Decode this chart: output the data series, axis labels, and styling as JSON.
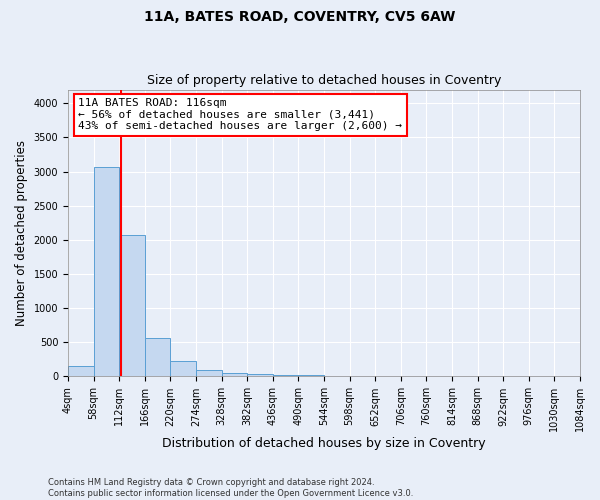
{
  "title": "11A, BATES ROAD, COVENTRY, CV5 6AW",
  "subtitle": "Size of property relative to detached houses in Coventry",
  "xlabel": "Distribution of detached houses by size in Coventry",
  "ylabel": "Number of detached properties",
  "bin_edges": [
    4,
    58,
    112,
    166,
    220,
    274,
    328,
    382,
    436,
    490,
    544,
    598,
    652,
    706,
    760,
    814,
    868,
    922,
    976,
    1030,
    1084
  ],
  "bin_heights": [
    150,
    3060,
    2070,
    560,
    220,
    90,
    55,
    40,
    25,
    18,
    12,
    10,
    8,
    6,
    5,
    4,
    3,
    2,
    2,
    2
  ],
  "bar_color": "#c5d8f0",
  "bar_edgecolor": "#5a9fd4",
  "vline_x": 116,
  "vline_color": "red",
  "annotation_text": "11A BATES ROAD: 116sqm\n← 56% of detached houses are smaller (3,441)\n43% of semi-detached houses are larger (2,600) →",
  "annotation_box_color": "white",
  "annotation_box_edgecolor": "red",
  "ylim": [
    0,
    4200
  ],
  "yticks": [
    0,
    500,
    1000,
    1500,
    2000,
    2500,
    3000,
    3500,
    4000
  ],
  "background_color": "#e8eef8",
  "plot_bg_color": "#e8eef8",
  "footer_line1": "Contains HM Land Registry data © Crown copyright and database right 2024.",
  "footer_line2": "Contains public sector information licensed under the Open Government Licence v3.0.",
  "title_fontsize": 10,
  "subtitle_fontsize": 9,
  "tick_fontsize": 7,
  "ylabel_fontsize": 8.5,
  "xlabel_fontsize": 9
}
